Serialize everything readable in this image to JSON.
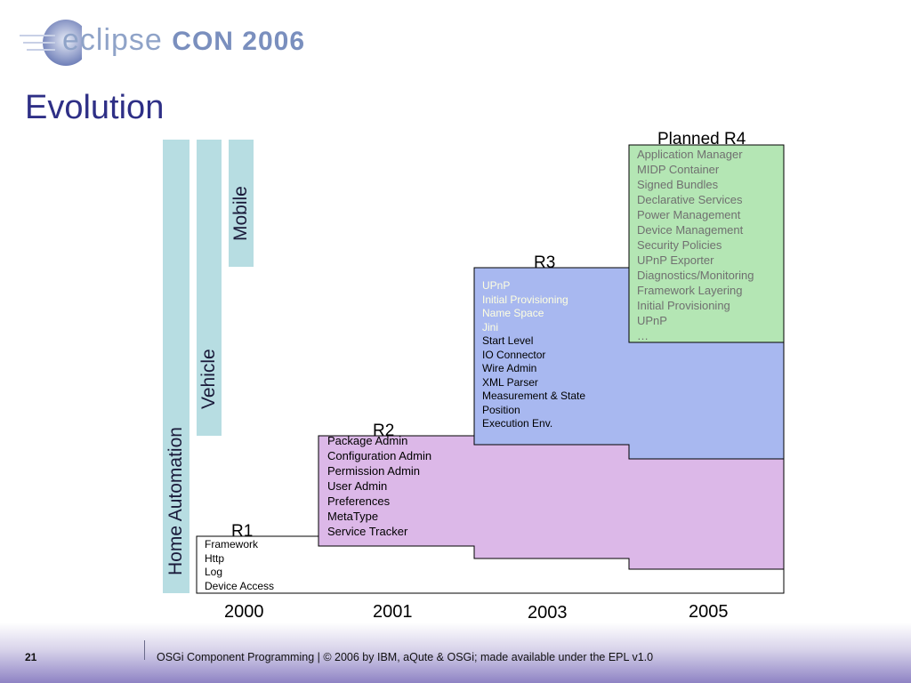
{
  "header": {
    "logo_text": "eclipse",
    "logo_event": "CON 2006"
  },
  "slide": {
    "title": "Evolution"
  },
  "bands": [
    {
      "label": "Home Automation"
    },
    {
      "label": "Vehicle"
    },
    {
      "label": "Mobile"
    }
  ],
  "releases": {
    "r1": {
      "label": "R1",
      "items": [
        "Framework",
        "Http",
        "Log",
        "Device Access"
      ]
    },
    "r2": {
      "label": "R2",
      "items": [
        "Package Admin",
        "Configuration Admin",
        "Permission Admin",
        "User Admin",
        "Preferences",
        "MetaType",
        "Service Tracker"
      ]
    },
    "r3": {
      "label": "R3",
      "highlight_items": [
        "UPnP",
        "Initial Provisioning",
        "Name Space",
        "Jini"
      ],
      "items": [
        "Start Level",
        "IO Connector",
        "Wire Admin",
        "XML Parser",
        "Measurement & State",
        "Position",
        "Execution Env."
      ]
    },
    "r4": {
      "label": "Planned R4",
      "items": [
        "Application Manager",
        "MIDP Container",
        "Signed Bundles",
        "Declarative Services",
        "Power Management",
        "Device Management",
        "Security Policies",
        "UPnP Exporter",
        "Diagnostics/Monitoring",
        "Framework Layering",
        "Initial Provisioning",
        "UPnP",
        "…"
      ]
    }
  },
  "timeline": {
    "years": [
      "2000",
      "2001",
      "2003",
      "2005"
    ]
  },
  "colors": {
    "band": "#b7dde2",
    "r2_fill": "#dcb8e8",
    "r3_fill": "#a8b8f0",
    "r4_fill": "#b4e6b4",
    "r3_highlight_text": "#ffffe0",
    "r4_text": "#707070",
    "title": "#2e2f86"
  },
  "footer": {
    "page_number": "21",
    "text": "OSGi Component Programming  | © 2006 by IBM, aQute & OSGi; made available under the EPL v1.0"
  }
}
